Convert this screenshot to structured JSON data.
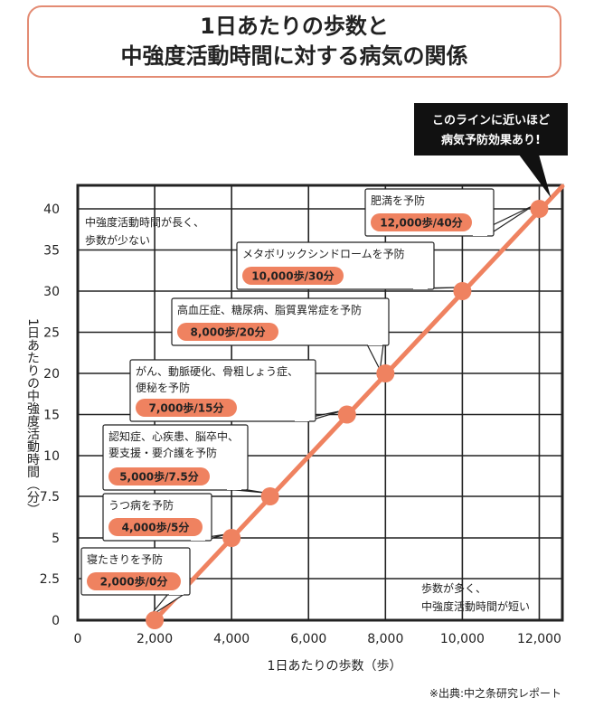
{
  "title": {
    "line1": "1日あたりの歩数と",
    "line2": "中強度活動時間に対する病気の関係"
  },
  "source": "※出典:中之条研究レポート",
  "colors": {
    "line": "#ef8260",
    "badge": "#ef8260",
    "frame": "#222222",
    "title_border": "#e38b73"
  },
  "chart_data": {
    "type": "line",
    "xlabel": "1日あたりの歩数（歩）",
    "ylabel": "1日あたりの中強度活動時間（分）",
    "xlim": [
      0,
      12600
    ],
    "ylim": [
      0,
      42.5
    ],
    "xticks": [
      {
        "value": 0,
        "label": "0"
      },
      {
        "value": 2000,
        "label": "2,000"
      },
      {
        "value": 4000,
        "label": "4,000"
      },
      {
        "value": 6000,
        "label": "6,000"
      },
      {
        "value": 8000,
        "label": "8,000"
      },
      {
        "value": 10000,
        "label": "10,000"
      },
      {
        "value": 12000,
        "label": "12,000"
      }
    ],
    "yticks": [
      {
        "value": 0,
        "label": "0"
      },
      {
        "value": 2.5,
        "label": "2.5"
      },
      {
        "value": 5,
        "label": "5"
      },
      {
        "value": 7.5,
        "label": "7.5"
      },
      {
        "value": 10,
        "label": "10"
      },
      {
        "value": 15,
        "label": "15"
      },
      {
        "value": 20,
        "label": "20"
      },
      {
        "value": 25,
        "label": "25"
      },
      {
        "value": 30,
        "label": "30"
      },
      {
        "value": 35,
        "label": "35"
      },
      {
        "value": 40,
        "label": "40"
      }
    ],
    "grid": true,
    "points": [
      {
        "x": 2000,
        "y": 0,
        "lines": [
          "寝たきりを予防"
        ],
        "badge": "2,000歩/0分"
      },
      {
        "x": 4000,
        "y": 5,
        "lines": [
          "うつ病を予防"
        ],
        "badge": "4,000歩/5分"
      },
      {
        "x": 5000,
        "y": 7.5,
        "lines": [
          "認知症、心疾患、脳卒中、",
          "要支援・要介護を予防"
        ],
        "badge": "5,000歩/7.5分"
      },
      {
        "x": 7000,
        "y": 15,
        "lines": [
          "がん、動脈硬化、骨粗しょう症、",
          "便秘を予防"
        ],
        "badge": "7,000歩/15分"
      },
      {
        "x": 8000,
        "y": 20,
        "lines": [
          "高血圧症、糖尿病、脂質異常症を予防"
        ],
        "badge": "8,000歩/20分"
      },
      {
        "x": 10000,
        "y": 30,
        "lines": [
          "メタボリックシンドロームを予防"
        ],
        "badge": "10,000歩/30分"
      },
      {
        "x": 12000,
        "y": 40,
        "lines": [
          "肥満を予防"
        ],
        "badge": "12,000歩/40分"
      }
    ],
    "annotations": {
      "top_left": [
        "中強度活動時間が長く、",
        "歩数が少ない"
      ],
      "bottom_right": [
        "歩数が多く、",
        "中強度活動時間が短い"
      ],
      "callout": [
        "このラインに近いほど",
        "病気予防効果あり!"
      ]
    }
  }
}
